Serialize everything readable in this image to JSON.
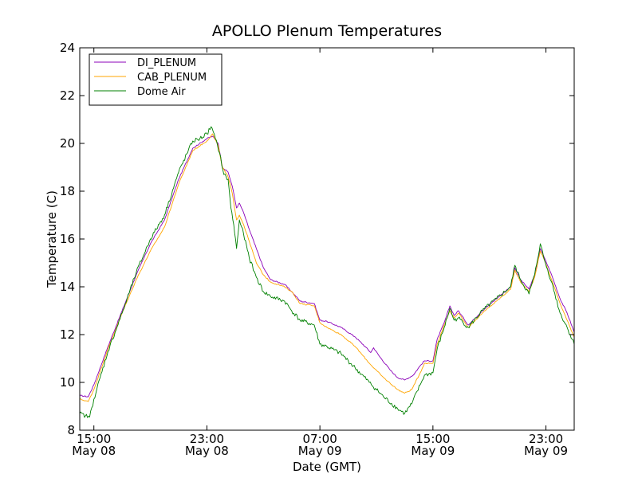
{
  "chart_data": {
    "type": "line",
    "title": "APOLLO Plenum Temperatures",
    "xlabel": "Date (GMT)",
    "ylabel": "Temperature (C)",
    "xlim": [
      -1.0,
      34.0
    ],
    "ylim": [
      8,
      24
    ],
    "x_unit": "hours since 15:00 May 08 (GMT)",
    "yticks": [
      8,
      10,
      12,
      14,
      16,
      18,
      20,
      22,
      24
    ],
    "xticks": [
      {
        "x": 0,
        "time": "15:00",
        "date": "May 08"
      },
      {
        "x": 8,
        "time": "23:00",
        "date": "May 08"
      },
      {
        "x": 16,
        "time": "07:00",
        "date": "May 09"
      },
      {
        "x": 24,
        "time": "15:00",
        "date": "May 09"
      },
      {
        "x": 32,
        "time": "23:00",
        "date": "May 09"
      }
    ],
    "legend_position": "top-left",
    "series": [
      {
        "name": "DI_PLENUM",
        "color": "#8b00b8",
        "points": [
          [
            -1.0,
            9.45
          ],
          [
            -0.4,
            9.4
          ],
          [
            0,
            9.9
          ],
          [
            1,
            11.5
          ],
          [
            2,
            13.0
          ],
          [
            3,
            14.5
          ],
          [
            4,
            15.8
          ],
          [
            5,
            16.8
          ],
          [
            6,
            18.5
          ],
          [
            7,
            19.8
          ],
          [
            8,
            20.2
          ],
          [
            8.4,
            20.3
          ],
          [
            8.8,
            20.0
          ],
          [
            9.1,
            19.0
          ],
          [
            9.5,
            18.8
          ],
          [
            9.8,
            18.2
          ],
          [
            10.1,
            17.3
          ],
          [
            10.3,
            17.5
          ],
          [
            10.6,
            17.1
          ],
          [
            11,
            16.4
          ],
          [
            11.5,
            15.6
          ],
          [
            12,
            14.8
          ],
          [
            12.5,
            14.3
          ],
          [
            13.5,
            14.1
          ],
          [
            14,
            13.8
          ],
          [
            14.6,
            13.4
          ],
          [
            15.6,
            13.3
          ],
          [
            16,
            12.6
          ],
          [
            16.5,
            12.55
          ],
          [
            17.5,
            12.3
          ],
          [
            18.5,
            11.9
          ],
          [
            19.2,
            11.5
          ],
          [
            19.6,
            11.25
          ],
          [
            19.8,
            11.45
          ],
          [
            20.2,
            11.1
          ],
          [
            21,
            10.5
          ],
          [
            21.5,
            10.2
          ],
          [
            22,
            10.1
          ],
          [
            22.6,
            10.3
          ],
          [
            23.1,
            10.7
          ],
          [
            23.4,
            10.9
          ],
          [
            24,
            10.9
          ],
          [
            24.3,
            11.8
          ],
          [
            24.8,
            12.5
          ],
          [
            25.2,
            13.2
          ],
          [
            25.5,
            12.8
          ],
          [
            25.8,
            13.0
          ],
          [
            26.5,
            12.4
          ],
          [
            27.5,
            13.0
          ],
          [
            28.5,
            13.5
          ],
          [
            29.5,
            14.0
          ],
          [
            29.8,
            14.8
          ],
          [
            30.2,
            14.3
          ],
          [
            30.8,
            13.9
          ],
          [
            31.2,
            14.5
          ],
          [
            31.6,
            15.6
          ],
          [
            31.9,
            15.2
          ],
          [
            32.4,
            14.5
          ],
          [
            33,
            13.5
          ],
          [
            33.5,
            12.9
          ],
          [
            34,
            12.1
          ]
        ]
      },
      {
        "name": "CAB_PLENUM",
        "color": "#ffa500",
        "points": [
          [
            -1.0,
            9.3
          ],
          [
            -0.4,
            9.2
          ],
          [
            0,
            9.7
          ],
          [
            1,
            11.4
          ],
          [
            2,
            12.9
          ],
          [
            3,
            14.3
          ],
          [
            4,
            15.5
          ],
          [
            5,
            16.5
          ],
          [
            6,
            18.3
          ],
          [
            7,
            19.7
          ],
          [
            8,
            20.1
          ],
          [
            8.4,
            20.4
          ],
          [
            8.8,
            19.9
          ],
          [
            9.1,
            19.0
          ],
          [
            9.5,
            18.6
          ],
          [
            9.8,
            17.9
          ],
          [
            10.1,
            16.8
          ],
          [
            10.3,
            17.0
          ],
          [
            10.6,
            16.6
          ],
          [
            11,
            15.9
          ],
          [
            11.5,
            15.0
          ],
          [
            12,
            14.5
          ],
          [
            12.5,
            14.2
          ],
          [
            13.5,
            14.0
          ],
          [
            14,
            13.8
          ],
          [
            14.6,
            13.3
          ],
          [
            15.6,
            13.2
          ],
          [
            16,
            12.5
          ],
          [
            16.5,
            12.3
          ],
          [
            17.5,
            12.0
          ],
          [
            18.5,
            11.5
          ],
          [
            19.5,
            10.8
          ],
          [
            20.5,
            10.2
          ],
          [
            21.5,
            9.7
          ],
          [
            22,
            9.55
          ],
          [
            22.5,
            9.7
          ],
          [
            23.1,
            10.4
          ],
          [
            23.4,
            10.8
          ],
          [
            24,
            10.8
          ],
          [
            24.3,
            11.6
          ],
          [
            24.8,
            12.4
          ],
          [
            25.2,
            13.0
          ],
          [
            25.5,
            12.7
          ],
          [
            25.8,
            12.9
          ],
          [
            26.5,
            12.3
          ],
          [
            27.5,
            12.9
          ],
          [
            28.5,
            13.4
          ],
          [
            29.5,
            13.9
          ],
          [
            29.8,
            14.7
          ],
          [
            30.2,
            14.2
          ],
          [
            30.8,
            13.8
          ],
          [
            31.2,
            14.4
          ],
          [
            31.6,
            15.5
          ],
          [
            31.9,
            15.1
          ],
          [
            32.4,
            14.3
          ],
          [
            33,
            13.3
          ],
          [
            33.5,
            12.6
          ],
          [
            34,
            11.9
          ]
        ]
      },
      {
        "name": "Dome Air",
        "color": "#008000",
        "points": [
          [
            -1.0,
            8.7
          ],
          [
            -0.6,
            8.6
          ],
          [
            -0.3,
            8.55
          ],
          [
            0,
            9.3
          ],
          [
            1,
            11.3
          ],
          [
            2,
            12.9
          ],
          [
            3,
            14.6
          ],
          [
            4,
            16.0
          ],
          [
            5,
            17.0
          ],
          [
            6,
            18.8
          ],
          [
            7,
            20.1
          ],
          [
            7.5,
            20.2
          ],
          [
            8,
            20.4
          ],
          [
            8.3,
            20.7
          ],
          [
            8.6,
            20.2
          ],
          [
            8.9,
            19.6
          ],
          [
            9.2,
            18.7
          ],
          [
            9.5,
            18.5
          ],
          [
            9.7,
            17.3
          ],
          [
            9.9,
            16.6
          ],
          [
            10.1,
            15.6
          ],
          [
            10.3,
            16.8
          ],
          [
            10.6,
            16.2
          ],
          [
            11,
            15.2
          ],
          [
            11.5,
            14.4
          ],
          [
            12,
            13.8
          ],
          [
            12.5,
            13.6
          ],
          [
            13.5,
            13.4
          ],
          [
            14,
            13.0
          ],
          [
            14.6,
            12.6
          ],
          [
            15.6,
            12.4
          ],
          [
            16,
            11.6
          ],
          [
            16.5,
            11.5
          ],
          [
            17.5,
            11.2
          ],
          [
            18.5,
            10.6
          ],
          [
            19.5,
            10.0
          ],
          [
            20.5,
            9.4
          ],
          [
            21.5,
            8.9
          ],
          [
            22,
            8.7
          ],
          [
            22.5,
            9.1
          ],
          [
            23.1,
            9.9
          ],
          [
            23.4,
            10.3
          ],
          [
            24,
            10.4
          ],
          [
            24.3,
            11.4
          ],
          [
            24.8,
            12.3
          ],
          [
            25.2,
            13.1
          ],
          [
            25.5,
            12.6
          ],
          [
            25.8,
            12.7
          ],
          [
            26.5,
            12.3
          ],
          [
            27.5,
            13.0
          ],
          [
            28.5,
            13.5
          ],
          [
            29.5,
            14.0
          ],
          [
            29.8,
            14.9
          ],
          [
            30.2,
            14.3
          ],
          [
            30.8,
            13.7
          ],
          [
            31.2,
            14.5
          ],
          [
            31.6,
            15.8
          ],
          [
            31.9,
            15.1
          ],
          [
            32.4,
            14.2
          ],
          [
            33,
            12.9
          ],
          [
            33.5,
            12.3
          ],
          [
            34,
            11.6
          ]
        ]
      }
    ]
  }
}
